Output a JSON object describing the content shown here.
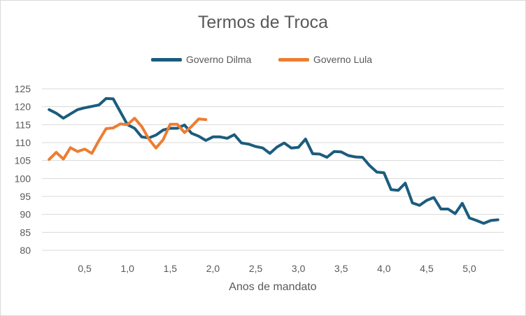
{
  "chart_data": {
    "type": "line",
    "title": "Termos de Troca",
    "xlabel": "Anos de mandato",
    "ylabel": "",
    "ylim": [
      80,
      125
    ],
    "xlim": [
      0,
      5.4
    ],
    "yticks": [
      80,
      85,
      90,
      95,
      100,
      105,
      110,
      115,
      120,
      125
    ],
    "xticks": [
      0.5,
      1.0,
      1.5,
      2.0,
      2.5,
      3.0,
      3.5,
      4.0,
      4.5,
      5.0
    ],
    "xtick_labels": [
      "0,5",
      "1,0",
      "1,5",
      "2,0",
      "2,5",
      "3,0",
      "3,5",
      "4,0",
      "4,5",
      "5,0"
    ],
    "grid": "horizontal",
    "legend_position": "top",
    "series": [
      {
        "name": "Governo Dilma",
        "color": "#1b5c7e",
        "x": [
          0.0833,
          0.1667,
          0.25,
          0.3333,
          0.4167,
          0.5,
          0.5833,
          0.6667,
          0.75,
          0.8333,
          0.9167,
          1.0,
          1.0833,
          1.1667,
          1.25,
          1.3333,
          1.4167,
          1.5,
          1.5833,
          1.6667,
          1.75,
          1.8333,
          1.9167,
          2.0,
          2.0833,
          2.1667,
          2.25,
          2.3333,
          2.4167,
          2.5,
          2.5833,
          2.6667,
          2.75,
          2.8333,
          2.9167,
          3.0,
          3.0833,
          3.1667,
          3.25,
          3.3333,
          3.4167,
          3.5,
          3.5833,
          3.6667,
          3.75,
          3.8333,
          3.9167,
          4.0,
          4.0833,
          4.1667,
          4.25,
          4.3333,
          4.4167,
          4.5,
          4.5833,
          4.6667,
          4.75,
          4.8333,
          4.9167,
          5.0,
          5.0833,
          5.1667,
          5.25,
          5.3333
        ],
        "values": [
          119.2,
          118.2,
          116.8,
          118.0,
          119.2,
          119.7,
          120.1,
          120.5,
          122.3,
          122.2,
          118.6,
          115.0,
          114.0,
          111.6,
          111.3,
          112.1,
          113.5,
          114.0,
          114.0,
          114.9,
          112.6,
          111.8,
          110.6,
          111.6,
          111.6,
          111.2,
          112.2,
          109.9,
          109.6,
          108.9,
          108.5,
          107.0,
          108.8,
          109.9,
          108.5,
          108.7,
          111.0,
          106.9,
          106.8,
          105.9,
          107.5,
          107.4,
          106.4,
          106.0,
          105.9,
          103.6,
          101.8,
          101.6,
          96.9,
          96.7,
          98.7,
          93.2,
          92.5,
          93.9,
          94.7,
          91.5,
          91.5,
          90.2,
          93.1,
          89.0,
          88.3,
          87.5,
          88.3,
          88.5
        ]
      },
      {
        "name": "Governo Lula",
        "color": "#ed7d31",
        "x": [
          0.0833,
          0.1667,
          0.25,
          0.3333,
          0.4167,
          0.5,
          0.5833,
          0.6667,
          0.75,
          0.8333,
          0.9167,
          1.0,
          1.0833,
          1.1667,
          1.25,
          1.3333,
          1.4167,
          1.5,
          1.5833,
          1.6667,
          1.75,
          1.8333,
          1.9167
        ],
        "values": [
          105.3,
          107.3,
          105.4,
          108.6,
          107.5,
          108.2,
          107.0,
          110.6,
          113.9,
          114.1,
          115.2,
          115.0,
          116.8,
          114.5,
          111.0,
          108.5,
          110.8,
          115.1,
          115.1,
          112.8,
          114.5,
          116.6,
          116.4
        ]
      }
    ]
  }
}
